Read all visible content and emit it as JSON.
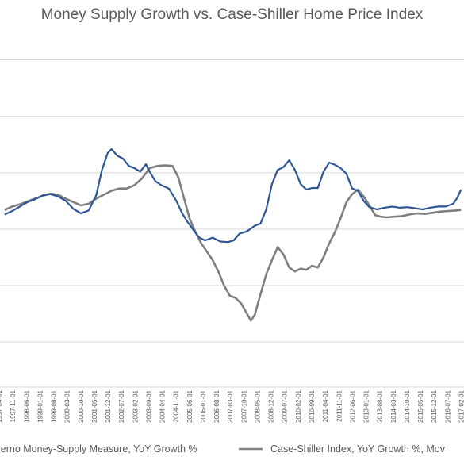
{
  "chart_data": {
    "type": "line",
    "title": "Money Supply Growth vs. Case-Shiller Home Price Index",
    "xlabel": "",
    "ylabel": "",
    "grid": true,
    "legend_position": "bottom",
    "x_tick_labels": [
      "1997-04-01",
      "1997-11-01",
      "1998-06-01",
      "1999-01-01",
      "1999-08-01",
      "2000-03-01",
      "2000-10-01",
      "2001-05-01",
      "2001-12-01",
      "2002-07-01",
      "2003-02-01",
      "2003-09-01",
      "2004-04-01",
      "2004-11-01",
      "2005-06-01",
      "2006-01-01",
      "2006-08-01",
      "2007-03-01",
      "2007-10-01",
      "2008-05-01",
      "2008-12-01",
      "2009-07-01",
      "2010-02-01",
      "2010-09-01",
      "2011-04-01",
      "2011-11-01",
      "2012-06-01",
      "2013-01-01",
      "2013-08-01",
      "2014-03-01",
      "2014-10-01",
      "2015-05-01",
      "2015-12-01",
      "2016-07-01",
      "2017-02-01"
    ],
    "series": [
      {
        "name": "...lerno Money-Supply Measure, YoY Growth %",
        "color": "#2F5597",
        "points": [
          [
            1997.25,
            2.6
          ],
          [
            1997.58,
            3.2
          ],
          [
            1997.92,
            4.0
          ],
          [
            1998.25,
            4.8
          ],
          [
            1998.58,
            5.3
          ],
          [
            1998.92,
            6.0
          ],
          [
            1999.25,
            6.2
          ],
          [
            1999.58,
            5.8
          ],
          [
            1999.92,
            5.0
          ],
          [
            2000.25,
            3.6
          ],
          [
            2000.58,
            2.8
          ],
          [
            2000.92,
            3.3
          ],
          [
            2001.25,
            6.0
          ],
          [
            2001.5,
            10.5
          ],
          [
            2001.75,
            13.5
          ],
          [
            2001.92,
            14.2
          ],
          [
            2002.17,
            13.0
          ],
          [
            2002.42,
            12.5
          ],
          [
            2002.67,
            11.2
          ],
          [
            2002.92,
            10.8
          ],
          [
            2003.17,
            10.2
          ],
          [
            2003.42,
            11.5
          ],
          [
            2003.58,
            10.2
          ],
          [
            2003.83,
            8.5
          ],
          [
            2004.08,
            7.8
          ],
          [
            2004.42,
            7.2
          ],
          [
            2004.75,
            5.0
          ],
          [
            2005.0,
            2.8
          ],
          [
            2005.25,
            1.2
          ],
          [
            2005.5,
            -0.2
          ],
          [
            2005.75,
            -1.5
          ],
          [
            2006.0,
            -2.0
          ],
          [
            2006.33,
            -1.5
          ],
          [
            2006.67,
            -2.2
          ],
          [
            2007.0,
            -2.3
          ],
          [
            2007.25,
            -2.0
          ],
          [
            2007.5,
            -0.8
          ],
          [
            2007.83,
            -0.4
          ],
          [
            2008.17,
            0.6
          ],
          [
            2008.42,
            1.0
          ],
          [
            2008.67,
            3.5
          ],
          [
            2008.92,
            8.0
          ],
          [
            2009.17,
            10.5
          ],
          [
            2009.42,
            11.0
          ],
          [
            2009.67,
            12.2
          ],
          [
            2009.92,
            10.5
          ],
          [
            2010.17,
            8.0
          ],
          [
            2010.42,
            7.0
          ],
          [
            2010.67,
            7.3
          ],
          [
            2010.92,
            7.3
          ],
          [
            2011.17,
            10.2
          ],
          [
            2011.42,
            11.8
          ],
          [
            2011.67,
            11.4
          ],
          [
            2011.92,
            10.8
          ],
          [
            2012.17,
            9.8
          ],
          [
            2012.42,
            7.2
          ],
          [
            2012.67,
            6.8
          ],
          [
            2012.92,
            5.0
          ],
          [
            2013.17,
            3.9
          ],
          [
            2013.5,
            3.5
          ],
          [
            2013.83,
            3.8
          ],
          [
            2014.17,
            4.0
          ],
          [
            2014.5,
            3.8
          ],
          [
            2014.83,
            3.9
          ],
          [
            2015.17,
            3.7
          ],
          [
            2015.5,
            3.5
          ],
          [
            2015.83,
            3.8
          ],
          [
            2016.17,
            4.0
          ],
          [
            2016.5,
            4.0
          ],
          [
            2016.83,
            4.5
          ],
          [
            2017.0,
            5.5
          ],
          [
            2017.17,
            7.0
          ]
        ]
      },
      {
        "name": "Case-Shiller Index, YoY Growth %, Mov...",
        "color": "#7F7F7F",
        "points": [
          [
            1997.25,
            3.4
          ],
          [
            1997.58,
            4.0
          ],
          [
            1997.92,
            4.4
          ],
          [
            1998.25,
            4.9
          ],
          [
            1998.58,
            5.4
          ],
          [
            1998.92,
            5.9
          ],
          [
            1999.25,
            6.3
          ],
          [
            1999.58,
            6.1
          ],
          [
            1999.92,
            5.4
          ],
          [
            2000.25,
            4.8
          ],
          [
            2000.58,
            4.2
          ],
          [
            2000.92,
            4.5
          ],
          [
            2001.25,
            5.4
          ],
          [
            2001.58,
            6.1
          ],
          [
            2001.92,
            6.8
          ],
          [
            2002.25,
            7.2
          ],
          [
            2002.58,
            7.2
          ],
          [
            2002.92,
            7.8
          ],
          [
            2003.25,
            9.0
          ],
          [
            2003.58,
            10.8
          ],
          [
            2003.92,
            11.2
          ],
          [
            2004.25,
            11.3
          ],
          [
            2004.58,
            11.2
          ],
          [
            2004.83,
            9.2
          ],
          [
            2005.08,
            5.5
          ],
          [
            2005.33,
            1.8
          ],
          [
            2005.58,
            -0.5
          ],
          [
            2005.83,
            -2.5
          ],
          [
            2006.08,
            -4.0
          ],
          [
            2006.33,
            -5.5
          ],
          [
            2006.58,
            -7.5
          ],
          [
            2006.83,
            -10.0
          ],
          [
            2007.08,
            -11.8
          ],
          [
            2007.33,
            -12.2
          ],
          [
            2007.58,
            -13.2
          ],
          [
            2007.83,
            -15.0
          ],
          [
            2008.0,
            -16.2
          ],
          [
            2008.17,
            -15.2
          ],
          [
            2008.42,
            -11.5
          ],
          [
            2008.67,
            -8.0
          ],
          [
            2008.92,
            -5.5
          ],
          [
            2009.17,
            -3.2
          ],
          [
            2009.42,
            -4.5
          ],
          [
            2009.67,
            -6.8
          ],
          [
            2009.92,
            -7.5
          ],
          [
            2010.17,
            -7.0
          ],
          [
            2010.42,
            -7.2
          ],
          [
            2010.67,
            -6.5
          ],
          [
            2010.92,
            -6.8
          ],
          [
            2011.17,
            -5.0
          ],
          [
            2011.42,
            -2.5
          ],
          [
            2011.67,
            -0.5
          ],
          [
            2011.92,
            2.0
          ],
          [
            2012.17,
            4.8
          ],
          [
            2012.42,
            6.2
          ],
          [
            2012.67,
            7.0
          ],
          [
            2012.92,
            5.8
          ],
          [
            2013.17,
            4.2
          ],
          [
            2013.42,
            2.5
          ],
          [
            2013.67,
            2.2
          ],
          [
            2013.92,
            2.1
          ],
          [
            2014.25,
            2.2
          ],
          [
            2014.58,
            2.3
          ],
          [
            2014.92,
            2.6
          ],
          [
            2015.25,
            2.8
          ],
          [
            2015.58,
            2.7
          ],
          [
            2015.92,
            2.9
          ],
          [
            2016.25,
            3.1
          ],
          [
            2016.58,
            3.2
          ],
          [
            2016.92,
            3.3
          ],
          [
            2017.17,
            3.4
          ]
        ]
      }
    ],
    "x_range": [
      1997.05,
      2017.3
    ],
    "y_range": [
      -28,
      35
    ],
    "y_gridlines": [
      -20,
      -10,
      0,
      10,
      20,
      30
    ]
  }
}
